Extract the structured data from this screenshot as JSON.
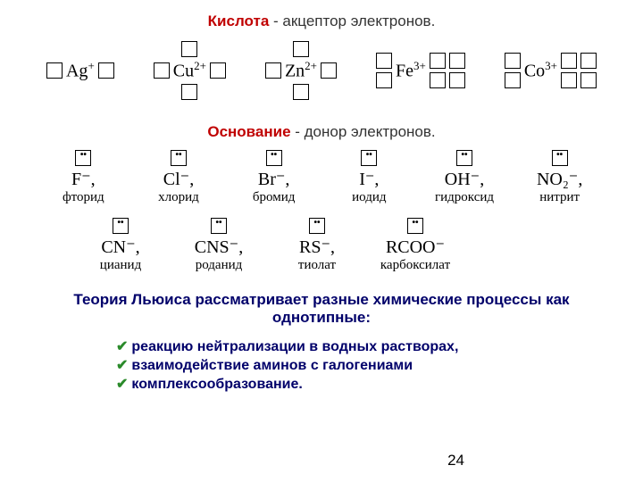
{
  "title_line": {
    "acid": "Кислота",
    "rest": " - акцептор электронов."
  },
  "cations": [
    {
      "sym": "Ag",
      "charge": "+",
      "boxes": 2
    },
    {
      "sym": "Cu",
      "charge": "2+",
      "boxes": 4
    },
    {
      "sym": "Zn",
      "charge": "2+",
      "boxes": 4
    },
    {
      "sym": "Fe",
      "charge": "3+",
      "boxes": 6
    },
    {
      "sym": "Co",
      "charge": "3+",
      "boxes": 6
    }
  ],
  "base_line": {
    "base": "Основание",
    "rest": " - донор электронов."
  },
  "anions_row1": [
    {
      "formula": "F⁻,",
      "name": "фторид"
    },
    {
      "formula": "Cl⁻,",
      "name": "хлорид"
    },
    {
      "formula": "Br⁻,",
      "name": "бромид"
    },
    {
      "formula": "I⁻,",
      "name": "иодид"
    },
    {
      "formula": "OH⁻,",
      "name": "гидроксид"
    },
    {
      "formula": "NO₂⁻,",
      "name": "нитрит"
    }
  ],
  "anions_row2": [
    {
      "formula": "CN⁻,",
      "name": "цианид"
    },
    {
      "formula": "CNS⁻,",
      "name": "роданид"
    },
    {
      "formula": "RS⁻,",
      "name": "тиолат"
    },
    {
      "formula": "RCOO⁻",
      "name": "карбоксилат"
    }
  ],
  "theory_text": "Теория Льюиса рассматривает разные химические процессы как однотипные:",
  "bullets": [
    "реакцию нейтрализации в водных растворах,",
    "взаимодействие аминов с галогениами",
    "комплексообразование."
  ],
  "page_number": "24",
  "colors": {
    "red": "#c00000",
    "blue": "#00006a",
    "green": "#2a8a2a"
  }
}
